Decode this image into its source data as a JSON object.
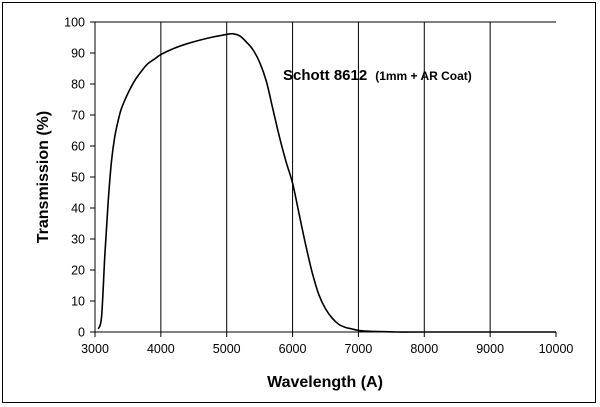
{
  "chart_data": {
    "type": "line",
    "title": "",
    "xlabel": "Wavelength (A)",
    "ylabel": "Transmission (%)",
    "xlim": [
      3000,
      10000
    ],
    "ylim": [
      0,
      100
    ],
    "x_ticks": [
      "3000",
      "4000",
      "5000",
      "6000",
      "7000",
      "8000",
      "9000",
      "10000"
    ],
    "y_ticks": [
      "0",
      "10",
      "20",
      "30",
      "40",
      "50",
      "60",
      "70",
      "80",
      "90",
      "100"
    ],
    "grid": {
      "vertical": true,
      "horizontal": false
    },
    "annotation": {
      "main": "Schott 8612",
      "sub": "(1mm + AR Coat)"
    },
    "series": [
      {
        "name": "",
        "color": "#000000",
        "x": [
          3050,
          3100,
          3150,
          3200,
          3250,
          3300,
          3350,
          3400,
          3500,
          3600,
          3700,
          3800,
          3900,
          4000,
          4200,
          4400,
          4600,
          4800,
          5000,
          5100,
          5200,
          5300,
          5400,
          5500,
          5600,
          5700,
          5800,
          5900,
          6000,
          6100,
          6200,
          6300,
          6400,
          6500,
          6600,
          6700,
          6800,
          6900,
          7000,
          7100,
          7200,
          7400,
          7600,
          8000,
          9000,
          10000
        ],
        "y": [
          1,
          5,
          25,
          42,
          55,
          63,
          68,
          72,
          77,
          81,
          84,
          86.5,
          88,
          89.5,
          91.5,
          93,
          94.2,
          95.2,
          96,
          96.2,
          95.5,
          93.5,
          91,
          87,
          81,
          72,
          63,
          55,
          48,
          38,
          28,
          19,
          12,
          7.5,
          4.5,
          2.5,
          1.5,
          1.0,
          0.5,
          0.3,
          0.2,
          0.1,
          0,
          0,
          0,
          0
        ]
      }
    ]
  }
}
